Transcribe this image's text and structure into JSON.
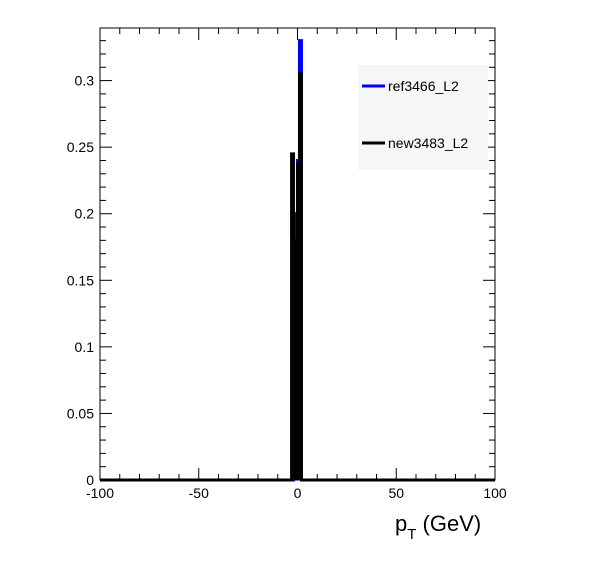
{
  "chart_data": {
    "type": "histogram-step",
    "title": "",
    "xlabel_main": "p",
    "xlabel_sub": "T",
    "xlabel_unit": " (GeV)",
    "ylabel": "",
    "xlim": [
      -100,
      100
    ],
    "ylim": [
      0,
      0.3395
    ],
    "x_ticks": [
      -100,
      -50,
      0,
      50,
      100
    ],
    "x_tick_labels": [
      "-100",
      "-50",
      "0",
      "50",
      "100"
    ],
    "y_ticks": [
      0,
      0.05,
      0.1,
      0.15,
      0.2,
      0.25,
      0.3
    ],
    "y_tick_labels": [
      "0",
      "0.05",
      "0.1",
      "0.15",
      "0.2",
      "0.25",
      "0.3"
    ],
    "grid": false,
    "legend_position": "top-right",
    "series": [
      {
        "name": "ref3466_L2",
        "color": "#0000ff",
        "bins": [
          {
            "x0": -2,
            "x1": -1,
            "y": 0.2
          },
          {
            "x0": -1,
            "x1": 0,
            "y": 0.005
          },
          {
            "x0": 0,
            "x1": 1,
            "y": 0.24
          },
          {
            "x0": 1,
            "x1": 2,
            "y": 0.33
          }
        ]
      },
      {
        "name": "new3483_L2",
        "color": "#000000",
        "bins": [
          {
            "x0": -3,
            "x1": -2,
            "y": 0.245
          },
          {
            "x0": -2,
            "x1": -1,
            "y": 0.18
          },
          {
            "x0": -1,
            "x1": 0,
            "y": 0.005
          },
          {
            "x0": 0,
            "x1": 1,
            "y": 0.237
          },
          {
            "x0": 1,
            "x1": 2,
            "y": 0.305
          }
        ]
      }
    ]
  }
}
